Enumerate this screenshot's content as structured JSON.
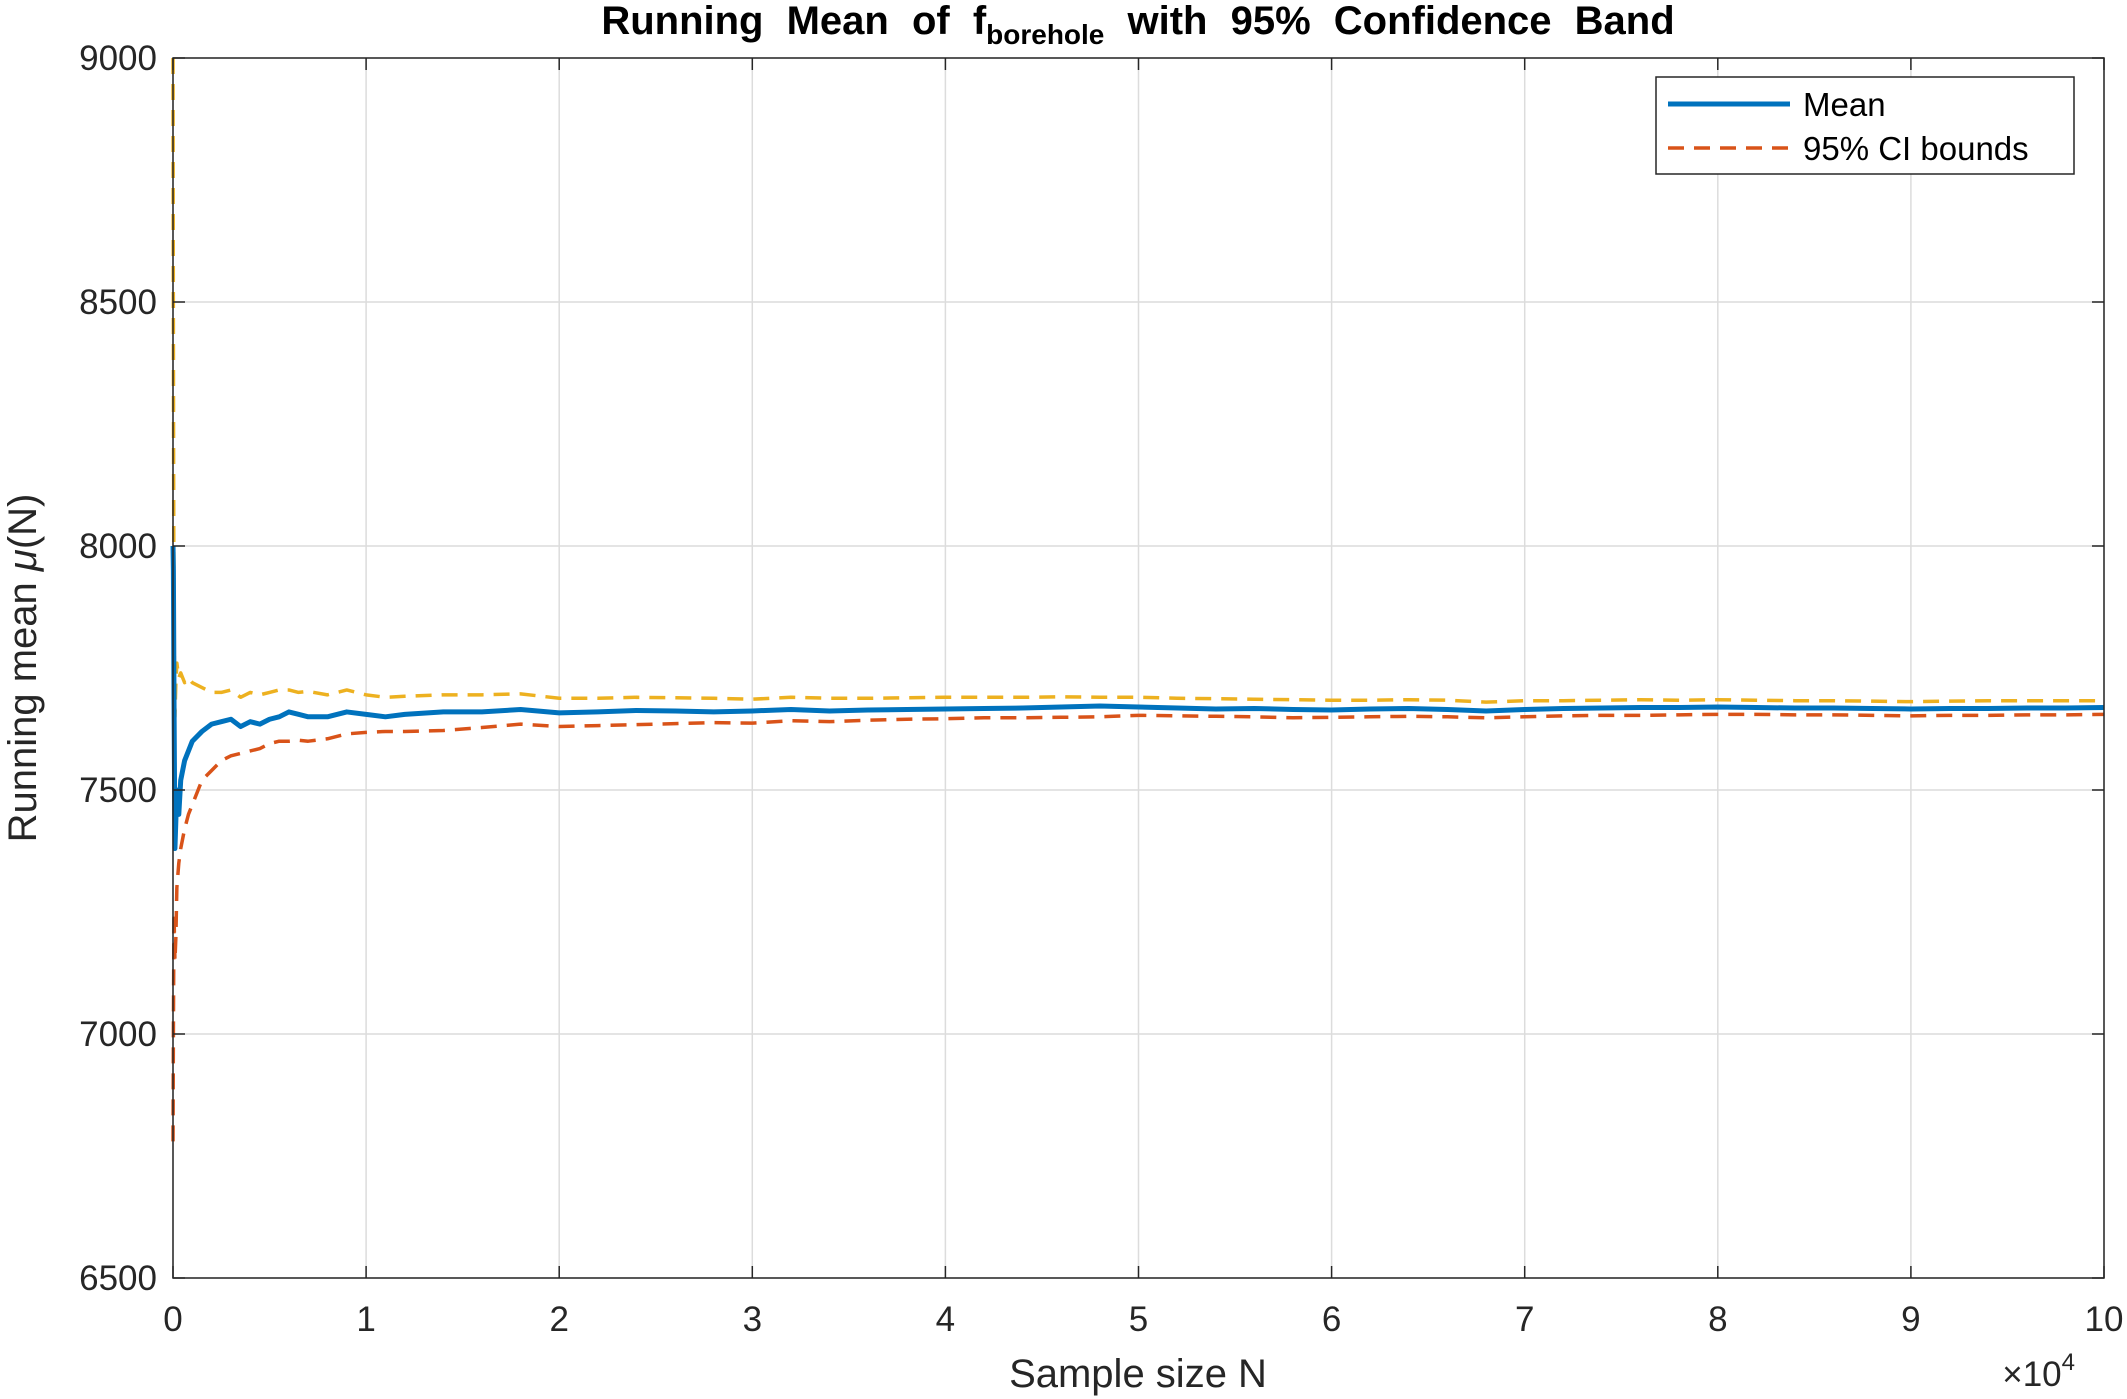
{
  "chart_data": {
    "type": "line",
    "title": {
      "prefix": "Running Mean of f",
      "subscript": "borehole",
      "suffix": " with 95% Confidence Band"
    },
    "xlabel": "Sample size N",
    "ylabel": {
      "prefix": "Running mean  ",
      "symbol": "μ",
      "suffix": "(N)"
    },
    "x_exponent_label": {
      "base": "×10",
      "exponent": "4"
    },
    "xlim": [
      0,
      100000
    ],
    "ylim": [
      6500,
      9000
    ],
    "xticks": [
      0,
      10000,
      20000,
      30000,
      40000,
      50000,
      60000,
      70000,
      80000,
      90000,
      100000
    ],
    "xtick_labels": [
      "0",
      "1",
      "2",
      "3",
      "4",
      "5",
      "6",
      "7",
      "8",
      "9",
      "10"
    ],
    "yticks": [
      6500,
      7000,
      7500,
      8000,
      8500,
      9000
    ],
    "ytick_labels": [
      "6500",
      "7000",
      "7500",
      "8000",
      "8500",
      "9000"
    ],
    "grid": true,
    "legend_position": "top-right",
    "series": [
      {
        "name": "Mean",
        "style": "solid",
        "color": "#0072BD",
        "x": [
          1,
          20,
          50,
          100,
          200,
          300,
          400,
          600,
          800,
          1000,
          1500,
          2000,
          2500,
          3000,
          3500,
          4000,
          4500,
          5000,
          5500,
          6000,
          6500,
          7000,
          8000,
          9000,
          10000,
          11000,
          12000,
          14000,
          16000,
          18000,
          20000,
          22000,
          24000,
          26000,
          28000,
          30000,
          32000,
          34000,
          36000,
          38000,
          40000,
          42000,
          44000,
          46000,
          48000,
          50000,
          52000,
          54000,
          56000,
          58000,
          60000,
          62000,
          64000,
          66000,
          68000,
          70000,
          72000,
          74000,
          76000,
          78000,
          80000,
          82000,
          84000,
          86000,
          88000,
          90000,
          92000,
          94000,
          96000,
          98000,
          100000
        ],
        "y": [
          8000,
          7950,
          7700,
          7380,
          7500,
          7450,
          7520,
          7560,
          7580,
          7600,
          7620,
          7635,
          7640,
          7645,
          7630,
          7640,
          7635,
          7645,
          7650,
          7660,
          7655,
          7650,
          7650,
          7660,
          7655,
          7650,
          7655,
          7660,
          7660,
          7665,
          7658,
          7660,
          7663,
          7662,
          7660,
          7662,
          7665,
          7662,
          7664,
          7665,
          7666,
          7667,
          7668,
          7670,
          7672,
          7670,
          7668,
          7666,
          7667,
          7665,
          7664,
          7666,
          7667,
          7665,
          7662,
          7665,
          7667,
          7668,
          7669,
          7669,
          7670,
          7669,
          7668,
          7668,
          7667,
          7666,
          7667,
          7667,
          7668,
          7668,
          7669
        ]
      },
      {
        "name": "95% CI bounds",
        "style": "dashed",
        "color": "#D95319",
        "x": [
          1,
          20,
          50,
          100,
          150,
          200,
          300,
          400,
          600,
          800,
          1000,
          1500,
          2000,
          2500,
          3000,
          3500,
          4000,
          4500,
          5000,
          5500,
          6000,
          6500,
          7000,
          8000,
          9000,
          10000,
          11000,
          12000,
          14000,
          16000,
          18000,
          20000,
          22000,
          24000,
          26000,
          28000,
          30000,
          32000,
          34000,
          36000,
          38000,
          40000,
          42000,
          44000,
          46000,
          48000,
          50000,
          52000,
          54000,
          56000,
          58000,
          60000,
          62000,
          64000,
          66000,
          68000,
          70000,
          72000,
          74000,
          76000,
          78000,
          80000,
          82000,
          84000,
          86000,
          88000,
          90000,
          92000,
          94000,
          96000,
          98000,
          100000
        ],
        "y": [
          6780,
          7000,
          7250,
          7150,
          7200,
          7300,
          7350,
          7380,
          7420,
          7450,
          7470,
          7520,
          7540,
          7560,
          7570,
          7575,
          7580,
          7585,
          7595,
          7600,
          7600,
          7602,
          7600,
          7605,
          7615,
          7618,
          7620,
          7620,
          7622,
          7628,
          7635,
          7630,
          7632,
          7634,
          7636,
          7638,
          7637,
          7642,
          7640,
          7643,
          7645,
          7646,
          7648,
          7648,
          7649,
          7650,
          7653,
          7652,
          7651,
          7650,
          7648,
          7649,
          7650,
          7651,
          7650,
          7648,
          7650,
          7652,
          7653,
          7653,
          7654,
          7655,
          7655,
          7654,
          7654,
          7653,
          7652,
          7653,
          7653,
          7654,
          7654,
          7655
        ]
      },
      {
        "style": "dashed",
        "color": "#EDB120",
        "x": [
          1,
          10,
          30,
          50,
          100,
          150,
          200,
          300,
          400,
          600,
          800,
          1000,
          1500,
          2000,
          2500,
          3000,
          3500,
          4000,
          4500,
          5000,
          5500,
          6000,
          6500,
          7000,
          8000,
          9000,
          10000,
          11000,
          12000,
          14000,
          16000,
          18000,
          20000,
          22000,
          24000,
          26000,
          28000,
          30000,
          32000,
          34000,
          36000,
          38000,
          40000,
          42000,
          44000,
          46000,
          48000,
          50000,
          52000,
          54000,
          56000,
          58000,
          60000,
          62000,
          64000,
          66000,
          68000,
          70000,
          72000,
          74000,
          76000,
          78000,
          80000,
          82000,
          84000,
          86000,
          88000,
          90000,
          92000,
          94000,
          96000,
          98000,
          100000
        ],
        "y": [
          9000,
          8700,
          8200,
          7850,
          7650,
          7720,
          7760,
          7730,
          7740,
          7720,
          7730,
          7720,
          7710,
          7700,
          7700,
          7705,
          7690,
          7700,
          7695,
          7700,
          7705,
          7705,
          7700,
          7702,
          7695,
          7705,
          7695,
          7690,
          7692,
          7695,
          7695,
          7697,
          7688,
          7688,
          7690,
          7689,
          7688,
          7686,
          7690,
          7688,
          7688,
          7689,
          7690,
          7690,
          7690,
          7691,
          7690,
          7690,
          7688,
          7687,
          7686,
          7685,
          7684,
          7684,
          7685,
          7684,
          7680,
          7683,
          7683,
          7684,
          7685,
          7684,
          7685,
          7684,
          7683,
          7683,
          7682,
          7681,
          7682,
          7683,
          7683,
          7683,
          7683
        ]
      }
    ]
  }
}
